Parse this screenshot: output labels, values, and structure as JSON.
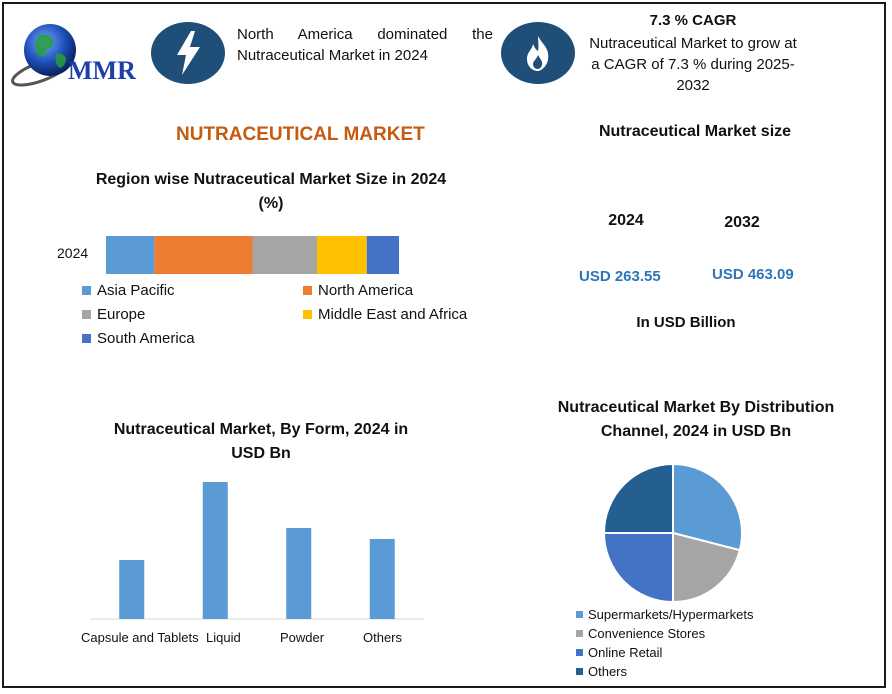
{
  "header": {
    "logo_text": "MMR",
    "highlight1": "North America dominated the Nutraceutical Market in 2024",
    "cagr_title": "7.3 % CAGR",
    "cagr_text": "Nutraceutical Market to grow at a CAGR of 7.3 % during 2025-2032",
    "icon1": "lightning-icon",
    "icon2": "flame-icon"
  },
  "main_title": "NUTRACEUTICAL MARKET",
  "market_size": {
    "title": "Nutraceutical Market size",
    "year1": "2024",
    "year2": "2032",
    "value1": "USD 263.55",
    "value2": "USD 463.09",
    "unit": "In USD Billion"
  },
  "colors": {
    "asia_pacific": "#5b9bd5",
    "north_america": "#ed7d31",
    "europe": "#a5a5a5",
    "mea": "#ffc000",
    "south_america": "#4472c4",
    "bar": "#5b9bd5",
    "pie_super": "#5b9bd5",
    "pie_conv": "#a5a5a5",
    "pie_online": "#4472c4",
    "pie_others": "#255e91"
  },
  "chart_data": [
    {
      "type": "bar",
      "stacked": true,
      "orientation": "horizontal",
      "title": "Region wise Nutraceutical Market Size in 2024 (%)",
      "categories": [
        "2024"
      ],
      "series": [
        {
          "name": "Asia Pacific",
          "values": [
            16.5
          ]
        },
        {
          "name": "North America",
          "values": [
            33.5
          ]
        },
        {
          "name": "Europe",
          "values": [
            22
          ]
        },
        {
          "name": "Middle East and Africa",
          "values": [
            17
          ]
        },
        {
          "name": "South America",
          "values": [
            11
          ]
        }
      ],
      "legend": "bottom"
    },
    {
      "type": "bar",
      "title": "Nutraceutical Market, By Form, 2024 in USD Bn",
      "categories": [
        "Capsule and Tablets",
        "Liquid",
        "Powder",
        "Others"
      ],
      "values": [
        59,
        137,
        91,
        80
      ],
      "ylim": [
        0,
        150
      ],
      "grid": false
    },
    {
      "type": "pie",
      "title": "Nutraceutical Market By Distribution Channel, 2024 in USD Bn",
      "series": [
        {
          "name": "Supermarkets/Hypermarkets",
          "values": [
            29
          ]
        },
        {
          "name": "Convenience Stores",
          "values": [
            21
          ]
        },
        {
          "name": "Online Retail",
          "values": [
            25
          ]
        },
        {
          "name": "Others",
          "values": [
            25
          ]
        }
      ],
      "legend": "bottom"
    }
  ]
}
